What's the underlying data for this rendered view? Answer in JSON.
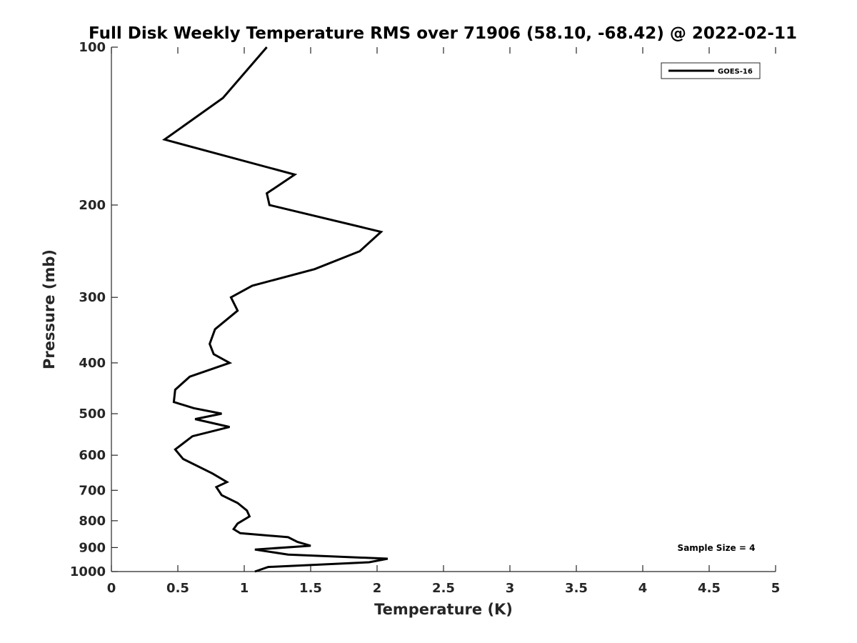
{
  "chart_data": {
    "type": "line",
    "title": "Full Disk Weekly Temperature RMS over 71906 (58.10, -68.42) @ 2022-02-11",
    "xlabel": "Temperature (K)",
    "ylabel": "Pressure (mb)",
    "xlim": [
      0,
      5
    ],
    "ylim": [
      100,
      1000
    ],
    "yscale": "log",
    "yreversed": true,
    "grid": false,
    "legend_position": "top-right",
    "x_ticks": [
      "0",
      "0.5",
      "1",
      "1.5",
      "2",
      "2.5",
      "3",
      "3.5",
      "4",
      "4.5",
      "5"
    ],
    "y_ticks": [
      "100",
      "200",
      "300",
      "400",
      "500",
      "600",
      "700",
      "800",
      "900",
      "1000"
    ],
    "annotation": "Sample Size = 4",
    "series": [
      {
        "name": "GOES-16",
        "color": "#000000",
        "points": [
          [
            1.17,
            100
          ],
          [
            0.84,
            125
          ],
          [
            0.4,
            150
          ],
          [
            1.38,
            175
          ],
          [
            1.17,
            190
          ],
          [
            1.19,
            200
          ],
          [
            2.03,
            225
          ],
          [
            1.87,
            245
          ],
          [
            1.53,
            265
          ],
          [
            1.06,
            285
          ],
          [
            0.9,
            300
          ],
          [
            0.95,
            318
          ],
          [
            0.78,
            345
          ],
          [
            0.74,
            368
          ],
          [
            0.77,
            385
          ],
          [
            0.89,
            400
          ],
          [
            0.59,
            425
          ],
          [
            0.48,
            450
          ],
          [
            0.47,
            475
          ],
          [
            0.62,
            488
          ],
          [
            0.83,
            500
          ],
          [
            0.63,
            512
          ],
          [
            0.89,
            530
          ],
          [
            0.61,
            552
          ],
          [
            0.48,
            585
          ],
          [
            0.54,
            610
          ],
          [
            0.76,
            650
          ],
          [
            0.87,
            675
          ],
          [
            0.79,
            690
          ],
          [
            0.83,
            715
          ],
          [
            0.95,
            740
          ],
          [
            1.02,
            765
          ],
          [
            1.04,
            785
          ],
          [
            0.95,
            810
          ],
          [
            0.92,
            830
          ],
          [
            0.97,
            845
          ],
          [
            1.33,
            860
          ],
          [
            1.4,
            878
          ],
          [
            1.5,
            893
          ],
          [
            1.08,
            908
          ],
          [
            1.33,
            928
          ],
          [
            2.08,
            945
          ],
          [
            1.94,
            960
          ],
          [
            1.18,
            980
          ],
          [
            1.08,
            1000
          ]
        ]
      }
    ]
  }
}
